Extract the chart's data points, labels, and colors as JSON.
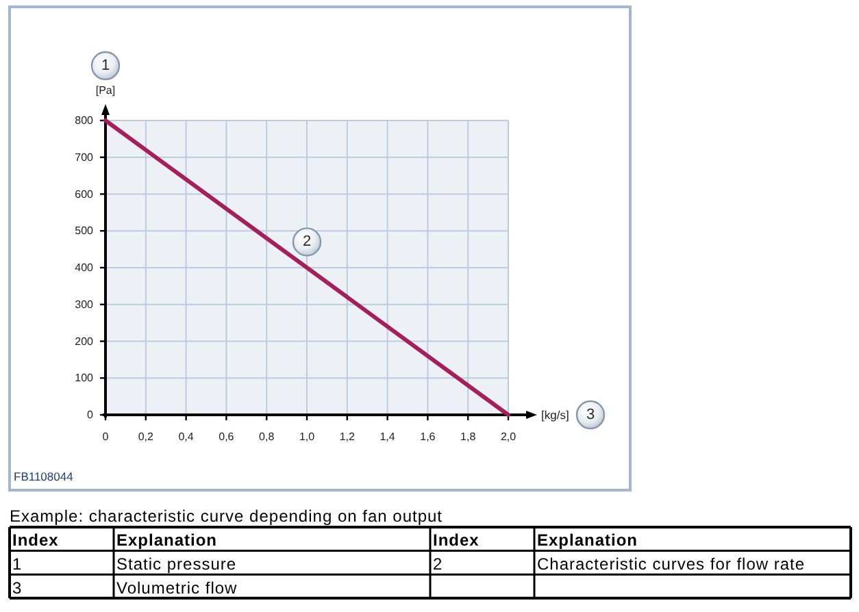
{
  "chart_data": {
    "type": "line",
    "xlabel": "[kg/s]",
    "ylabel": "[Pa]",
    "x": [
      0,
      2.0
    ],
    "values": [
      800,
      0
    ],
    "color": "#a3205c",
    "xlim": [
      0,
      2.0
    ],
    "xticks": [
      0,
      {
        "value": 0.2,
        "label": "0,2"
      },
      {
        "value": 0.4,
        "label": "0,4"
      },
      {
        "value": 0.6,
        "label": "0,6"
      },
      {
        "value": 0.8,
        "label": "0,8"
      },
      {
        "value": 1.0,
        "label": "1,0"
      },
      {
        "value": 1.2,
        "label": "1,2"
      },
      {
        "value": 1.4,
        "label": "1,4"
      },
      {
        "value": 1.6,
        "label": "1,6"
      },
      {
        "value": 1.8,
        "label": "1,8"
      },
      {
        "value": 2.0,
        "label": "2,0"
      }
    ],
    "ylim": [
      0,
      800
    ],
    "yticks": [
      0,
      100,
      200,
      300,
      400,
      500,
      600,
      700,
      800
    ],
    "grid": true,
    "annotations": [
      {
        "text": "2",
        "x": 1.0,
        "y": 470
      },
      "1",
      "3",
      "FB1108044",
      "Example: characteristic curve depending on fan output",
      "Index",
      "Explanation",
      "Index",
      "Explanation",
      "1",
      "Static pressure",
      "2",
      "Characteristic curves for flow rate",
      "3",
      "Volumetric flow"
    ]
  }
}
